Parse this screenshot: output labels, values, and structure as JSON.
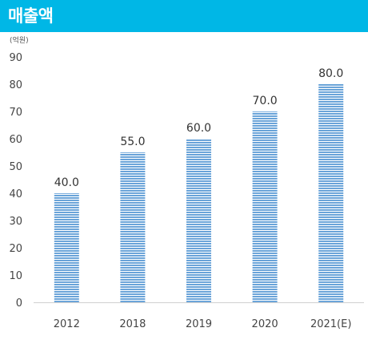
{
  "header": {
    "title": "매출액"
  },
  "chart_data": {
    "type": "bar",
    "title": "",
    "unit": "(억원)",
    "categories": [
      "2012",
      "2018",
      "2019",
      "2020",
      "2021(E)"
    ],
    "values": [
      40.0,
      55.0,
      60.0,
      70.0,
      80.0
    ],
    "value_labels": [
      "40.0",
      "55.0",
      "60.0",
      "70.0",
      "80.0"
    ],
    "ylim": [
      0,
      90
    ],
    "yticks": [
      0,
      10,
      20,
      30,
      40,
      50,
      60,
      70,
      80,
      90
    ],
    "xlabel": "",
    "ylabel": "",
    "grid": false,
    "bar_color": "#5b9bd5",
    "bar_fill_style": "horizontal-stripes"
  },
  "colors": {
    "header_bg": "#00b7e6",
    "header_text": "#ffffff"
  }
}
